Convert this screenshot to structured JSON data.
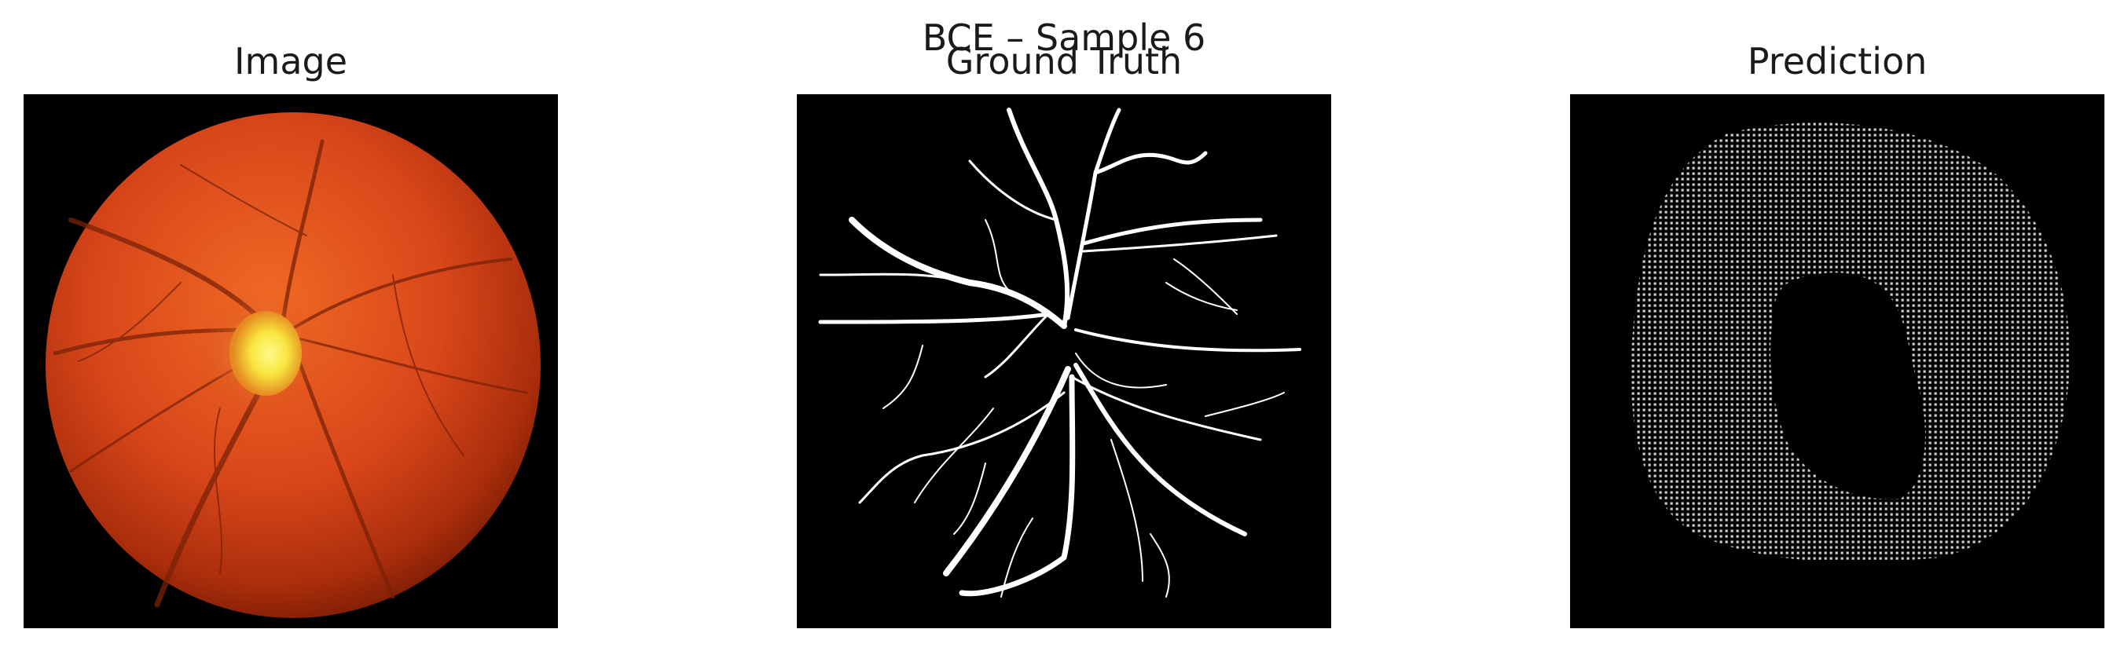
{
  "figure": {
    "suptitle": "BCE – Sample 6"
  },
  "panels": [
    {
      "title": "Image"
    },
    {
      "title": "Ground Truth"
    },
    {
      "title": "Prediction"
    }
  ],
  "colors": {
    "background": "#ffffff",
    "panel_background": "#000000",
    "vessel": "#ffffff",
    "prediction_dots": "#c8c8c8",
    "fundus_center": "#e0521a",
    "fundus_edge": "#8a2406",
    "optic_disc": "#fff45a"
  }
}
